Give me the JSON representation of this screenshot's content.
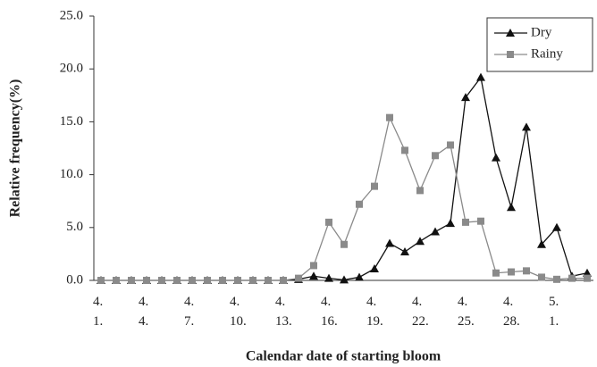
{
  "chart_data": {
    "type": "line",
    "y_label": "Relative frequency(%)",
    "x_label": "Calendar date of starting bloom",
    "categories": [
      "4. 1.",
      null,
      null,
      "4. 4.",
      null,
      null,
      "4. 7.",
      null,
      null,
      "4. 10.",
      null,
      null,
      "4. 13.",
      null,
      null,
      "4. 16.",
      null,
      null,
      "4. 19.",
      null,
      null,
      "4. 22.",
      null,
      null,
      "4. 25.",
      null,
      null,
      "4. 28.",
      null,
      null,
      "5. 1.",
      null,
      null
    ],
    "series": [
      {
        "name": "Dry",
        "color": "#111111",
        "marker": "triangle",
        "values": [
          0,
          0,
          0,
          0,
          0,
          0,
          0,
          0,
          0,
          0,
          0,
          0,
          0,
          0.1,
          0.4,
          0.2,
          0.05,
          0.3,
          1.1,
          3.5,
          2.7,
          3.7,
          4.6,
          5.4,
          17.3,
          19.2,
          11.6,
          6.9,
          14.5,
          3.4,
          5.0,
          0.4,
          0.7
        ]
      },
      {
        "name": "Rainy",
        "color": "#8a8a8a",
        "marker": "square",
        "values": [
          0,
          0,
          0,
          0,
          0,
          0,
          0,
          0,
          0,
          0,
          0,
          0,
          0,
          0.2,
          1.4,
          5.5,
          3.4,
          7.2,
          8.9,
          15.4,
          12.3,
          8.5,
          11.8,
          12.8,
          5.5,
          5.6,
          0.7,
          0.8,
          0.9,
          0.3,
          0.1,
          0.2,
          0.2
        ]
      }
    ],
    "ylim": [
      0,
      25
    ],
    "yticks": [
      {
        "value": 0,
        "label": "0.0"
      },
      {
        "value": 5,
        "label": "5.0"
      },
      {
        "value": 10,
        "label": "10.0"
      },
      {
        "value": 15,
        "label": "15.0"
      },
      {
        "value": 20,
        "label": "20.0"
      },
      {
        "value": 25,
        "label": "25.0"
      }
    ],
    "legend": "upper right",
    "grid": false
  }
}
